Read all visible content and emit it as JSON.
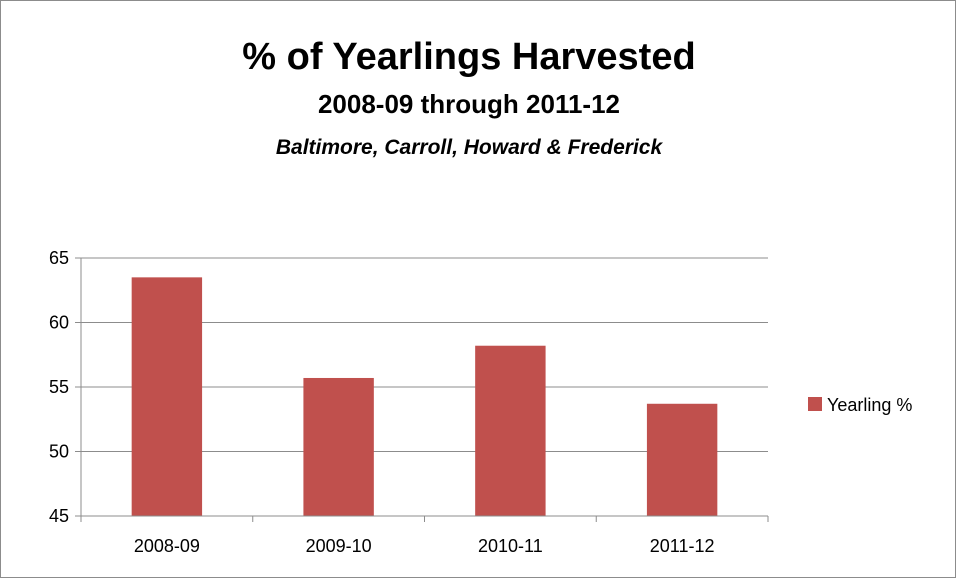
{
  "chart_data": {
    "type": "bar",
    "title": "% of Yearlings Harvested",
    "subtitle": "2008-09 through 2011-12",
    "subtitle2": "Baltimore, Carroll, Howard & Frederick",
    "categories": [
      "2008-09",
      "2009-10",
      "2010-11",
      "2011-12"
    ],
    "series": [
      {
        "name": "Yearling %",
        "values": [
          63.5,
          55.7,
          58.2,
          53.7
        ],
        "color": "#c0504d"
      }
    ],
    "ylim": [
      45,
      65
    ],
    "yticks": [
      45,
      50,
      55,
      60,
      65
    ],
    "grid": true,
    "legend_position": "right"
  }
}
